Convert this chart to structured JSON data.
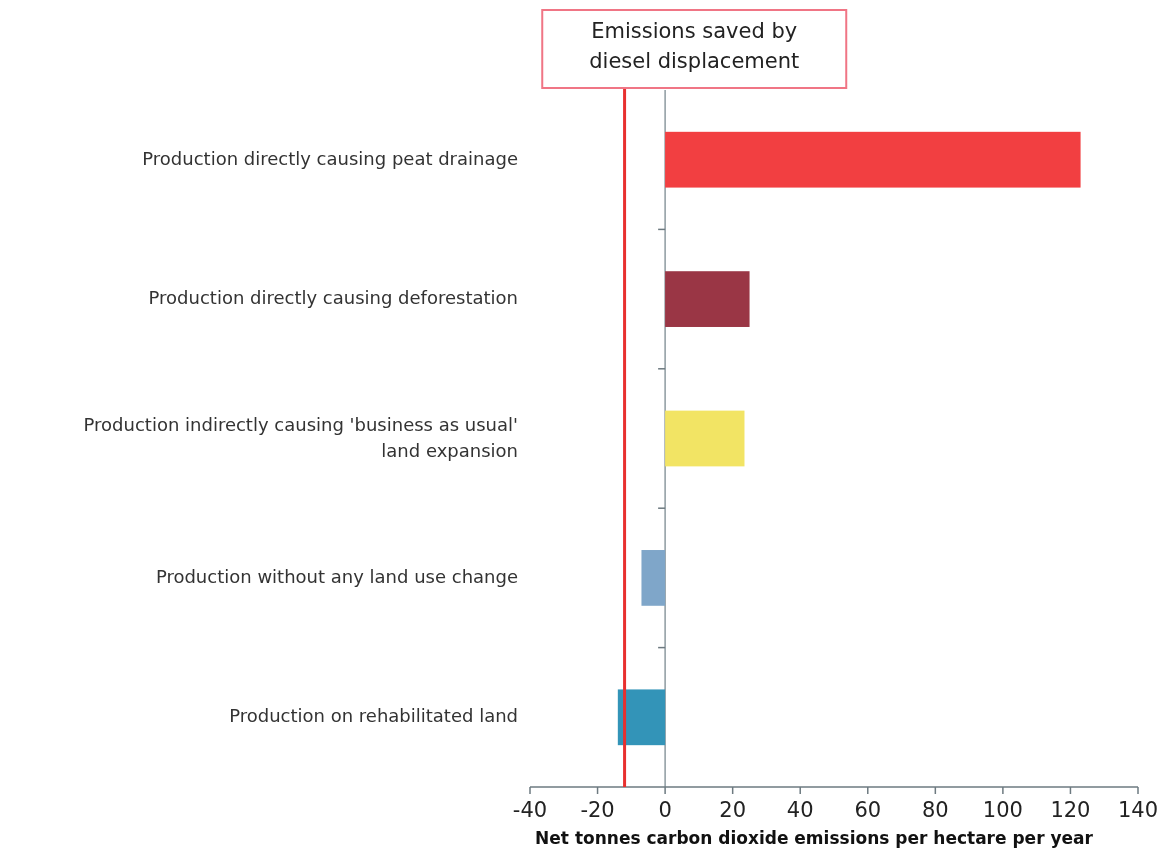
{
  "chart_data": {
    "type": "bar",
    "orientation": "horizontal",
    "categories": [
      "Production directly causing peat drainage",
      "Production directly causing deforestation",
      "Production indirectly causing 'business as usual' land expansion",
      "Production without any land use change",
      "Production on rehabilitated land"
    ],
    "values": [
      123,
      25,
      23.5,
      -7,
      -14
    ],
    "colors": [
      "#f23f41",
      "#9a3645",
      "#f2e464",
      "#7fa6c9",
      "#3394b8"
    ],
    "xlim": [
      -40,
      140
    ],
    "xticks": [
      -40,
      -20,
      0,
      20,
      40,
      60,
      80,
      100,
      120,
      140
    ],
    "xlabel": "Net tonnes carbon dioxide emissions per hectare per year",
    "ref_lines": [
      {
        "axis": "x",
        "value": -12,
        "label": "Emissions saved by diesel displacement",
        "color": "#e8302f"
      }
    ]
  }
}
